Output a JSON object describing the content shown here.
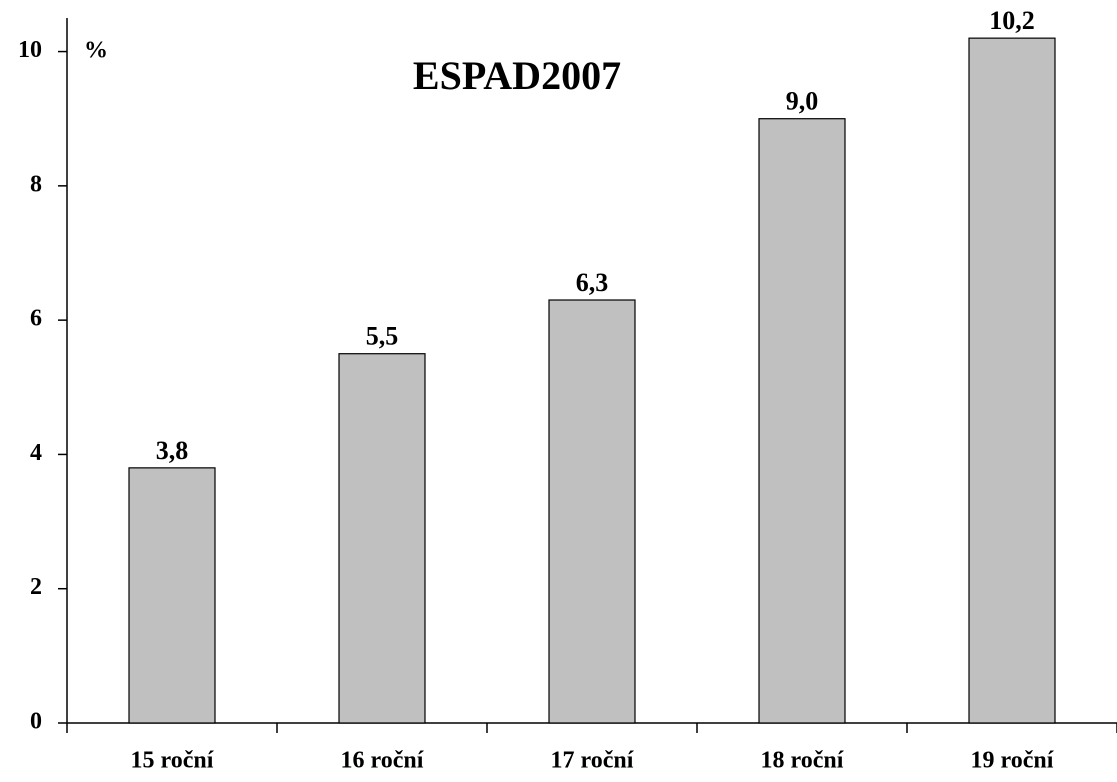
{
  "chart_data": {
    "type": "bar",
    "title": "ESPAD2007",
    "ylabel": "%",
    "categories": [
      "15 roční",
      "16 roční",
      "17 roční",
      "18 roční",
      "19 roční"
    ],
    "values": [
      3.8,
      5.5,
      6.3,
      9.0,
      10.2
    ],
    "value_labels": [
      "3,8",
      "5,5",
      "6,3",
      "9,0",
      "10,2"
    ],
    "color": "#c0c0c0",
    "ylim": [
      0,
      10.5
    ],
    "yticks": [
      0,
      2,
      4,
      6,
      8,
      10
    ],
    "grid": false
  }
}
